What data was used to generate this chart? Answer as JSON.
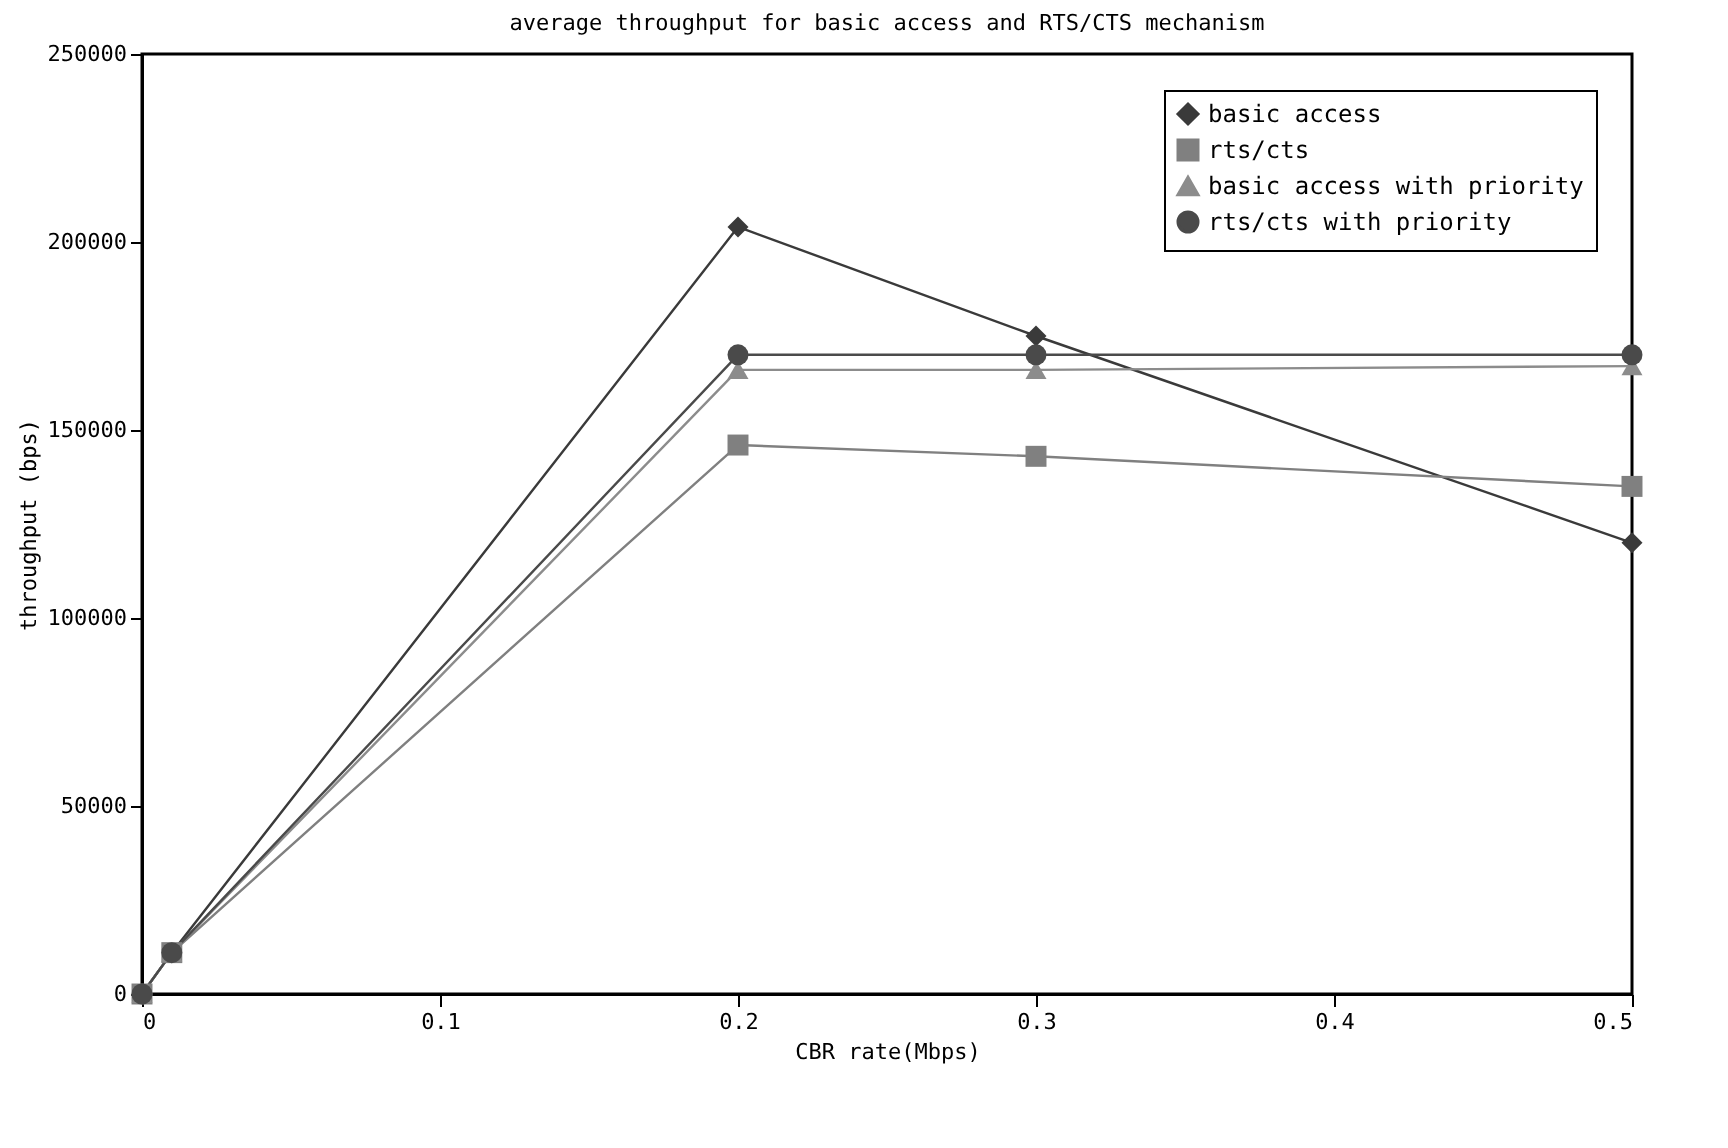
{
  "chart_data": {
    "type": "line",
    "title": "average throughput for basic access and RTS/CTS mechanism",
    "xlabel": "CBR rate(Mbps)",
    "ylabel": "throughput (bps)",
    "x": [
      0,
      0.01,
      0.2,
      0.3,
      0.5
    ],
    "series": [
      {
        "name": "basic access",
        "color": "#3a3a3a",
        "marker": "diamond",
        "values": [
          0,
          11000,
          204000,
          175000,
          120000
        ]
      },
      {
        "name": "rts/cts",
        "color": "#808080",
        "marker": "square",
        "values": [
          0,
          11000,
          146000,
          143000,
          135000
        ]
      },
      {
        "name": "basic access with priority",
        "color": "#8c8c8c",
        "marker": "triangle",
        "values": [
          0,
          11000,
          166000,
          166000,
          167000
        ]
      },
      {
        "name": "rts/cts with priority",
        "color": "#4a4a4a",
        "marker": "circle",
        "values": [
          0,
          11000,
          170000,
          170000,
          170000
        ]
      }
    ],
    "xlim": [
      0,
      0.5
    ],
    "xticks": [
      0,
      0.1,
      0.2,
      0.3,
      0.4,
      0.5
    ],
    "ylim": [
      0,
      250000
    ],
    "yticks": [
      0,
      50000,
      100000,
      150000,
      200000,
      250000
    ],
    "grid": false,
    "legend": "top right",
    "line_style": "solid"
  }
}
